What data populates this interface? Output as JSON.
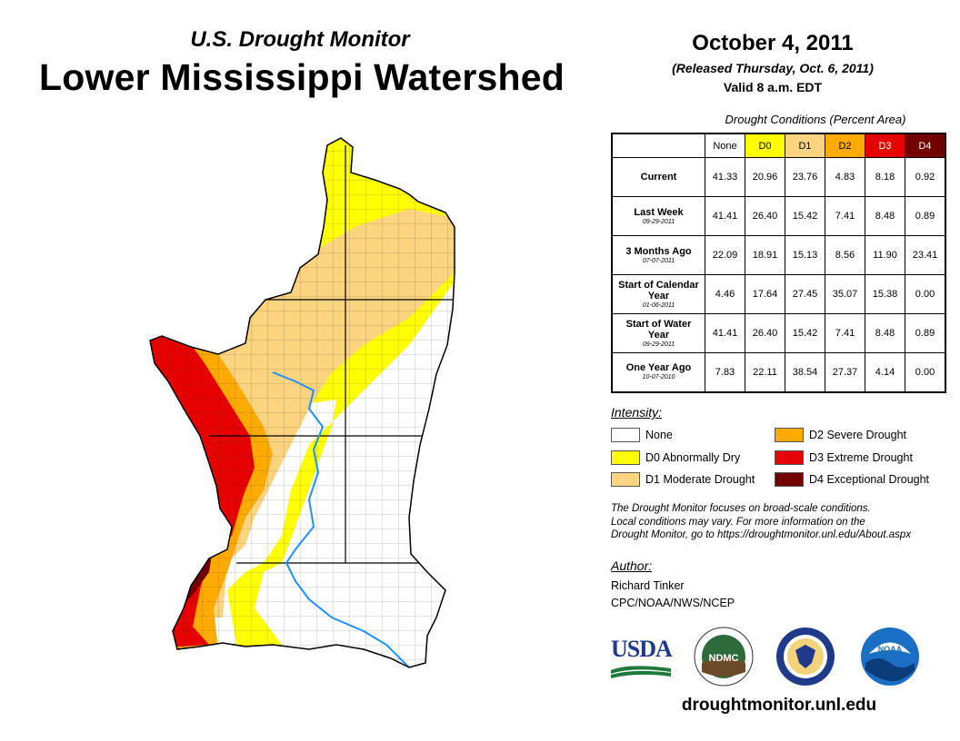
{
  "header": {
    "program": "U.S. Drought Monitor",
    "region": "Lower Mississippi Watershed",
    "date": "October 4, 2011",
    "released": "(Released Thursday, Oct. 6, 2011)",
    "valid": "Valid 8 a.m. EDT"
  },
  "table": {
    "caption": "Drought Conditions (Percent Area)",
    "columns": [
      "None",
      "D0",
      "D1",
      "D2",
      "D3",
      "D4"
    ],
    "column_colors": [
      "#ffffff",
      "#ffff00",
      "#fcd37f",
      "#ffaa00",
      "#e60000",
      "#730000"
    ],
    "column_text_colors": [
      "#000000",
      "#000000",
      "#000000",
      "#000000",
      "#ffffff",
      "#ffffff"
    ],
    "rows": [
      {
        "label": "Current",
        "date": "",
        "values": [
          "41.33",
          "20.96",
          "23.76",
          "4.83",
          "8.18",
          "0.92"
        ]
      },
      {
        "label": "Last Week",
        "date": "09-29-2011",
        "values": [
          "41.41",
          "26.40",
          "15.42",
          "7.41",
          "8.48",
          "0.89"
        ]
      },
      {
        "label": "3 Months Ago",
        "date": "07-07-2011",
        "values": [
          "22.09",
          "18.91",
          "15.13",
          "8.56",
          "11.90",
          "23.41"
        ]
      },
      {
        "label": "Start of Calendar Year",
        "date": "01-06-2011",
        "values": [
          "4.46",
          "17.64",
          "27.45",
          "35.07",
          "15.38",
          "0.00"
        ]
      },
      {
        "label": "Start of Water Year",
        "date": "09-29-2011",
        "values": [
          "41.41",
          "26.40",
          "15.42",
          "7.41",
          "8.48",
          "0.89"
        ]
      },
      {
        "label": "One Year Ago",
        "date": "10-07-2010",
        "values": [
          "7.83",
          "22.11",
          "38.54",
          "27.37",
          "4.14",
          "0.00"
        ]
      }
    ]
  },
  "legend": {
    "title": "Intensity:",
    "items": [
      {
        "label": "None",
        "color": "#ffffff"
      },
      {
        "label": "D0 Abnormally Dry",
        "color": "#ffff00"
      },
      {
        "label": "D1 Moderate Drought",
        "color": "#fcd37f"
      },
      {
        "label": "D2 Severe Drought",
        "color": "#ffaa00"
      },
      {
        "label": "D3 Extreme Drought",
        "color": "#e60000"
      },
      {
        "label": "D4 Exceptional Drought",
        "color": "#730000"
      }
    ]
  },
  "note": {
    "line1": "The Drought Monitor focuses on broad-scale conditions.",
    "line2": "Local conditions may vary. For more information on the",
    "line3": "Drought Monitor, go to https://droughtmonitor.unl.edu/About.aspx"
  },
  "author": {
    "label": "Author:",
    "name": "Richard Tinker",
    "org": "CPC/NOAA/NWS/NCEP"
  },
  "logos": {
    "usda": "USDA",
    "ndmc": "NDMC",
    "noaa": "NOAA"
  },
  "website": "droughtmonitor.unl.edu"
}
